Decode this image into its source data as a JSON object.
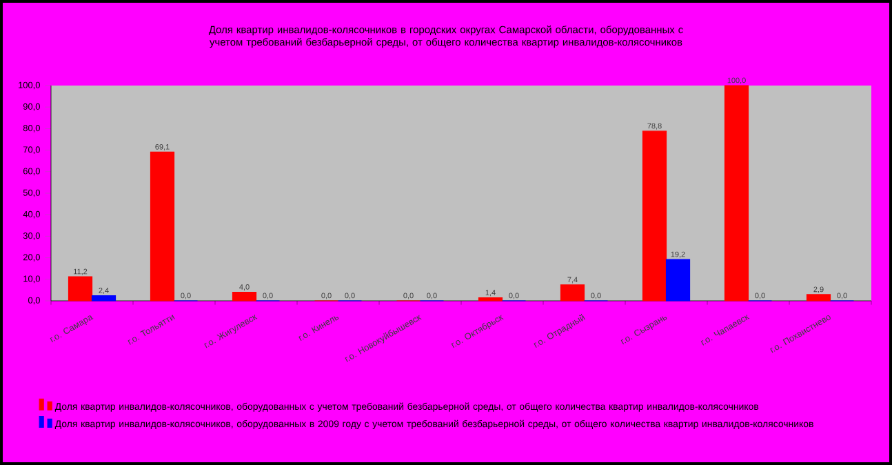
{
  "chart_data": {
    "type": "bar",
    "title": "Доля квартир инвалидов-колясочников в городских округах Самарской области, оборудованных с учетом требований безбарьерной среды, от общего количества квартир инвалидов-колясочников",
    "categories": [
      "г.о. Самара",
      "г.о. Тольятти",
      "г.о. Жигулевск",
      "г.о. Кинель",
      "г.о. Новокуйбышевск",
      "г.о. Октябрьск",
      "г.о. Отрадный",
      "г.о. Сызрань",
      "г.о. Чапаевск",
      "г.о. Похвистнево"
    ],
    "series": [
      {
        "name": "Доля квартир инвалидов-колясочников, оборудованных с учетом требований безбарьерной среды, от общего количества квартир инвалидов-колясочников",
        "color": "#ff0000",
        "values": [
          11.2,
          69.1,
          4.0,
          0.0,
          0.0,
          1.4,
          7.4,
          78.8,
          100.0,
          2.9
        ],
        "value_labels": [
          "11,2",
          "69,1",
          "4,0",
          "0,0",
          "0,0",
          "1,4",
          "7,4",
          "78,8",
          "100,0",
          "2,9"
        ]
      },
      {
        "name": "Доля квартир инвалидов-колясочников, оборудованных в 2009 году с учетом требований безбарьерной среды, от общего количества квартир инвалидов-колясочников",
        "color": "#0000ff",
        "values": [
          2.4,
          0.0,
          0.0,
          0.0,
          0.0,
          0.0,
          0.0,
          19.2,
          0.0,
          0.0
        ],
        "value_labels": [
          "2,4",
          "0,0",
          "0,0",
          "0,0",
          "0,0",
          "0,0",
          "0,0",
          "19,2",
          "0,0",
          "0,0"
        ]
      }
    ],
    "ylim": [
      0,
      100
    ],
    "yticks": [
      {
        "value": 0,
        "label": "0,0"
      },
      {
        "value": 10,
        "label": "10,0"
      },
      {
        "value": 20,
        "label": "20,0"
      },
      {
        "value": 30,
        "label": "30,0"
      },
      {
        "value": 40,
        "label": "40,0"
      },
      {
        "value": 50,
        "label": "50,0"
      },
      {
        "value": 60,
        "label": "60,0"
      },
      {
        "value": 70,
        "label": "70,0"
      },
      {
        "value": 80,
        "label": "80,0"
      },
      {
        "value": 90,
        "label": "90,0"
      },
      {
        "value": 100,
        "label": "100,0"
      }
    ],
    "legend": "bottom"
  }
}
